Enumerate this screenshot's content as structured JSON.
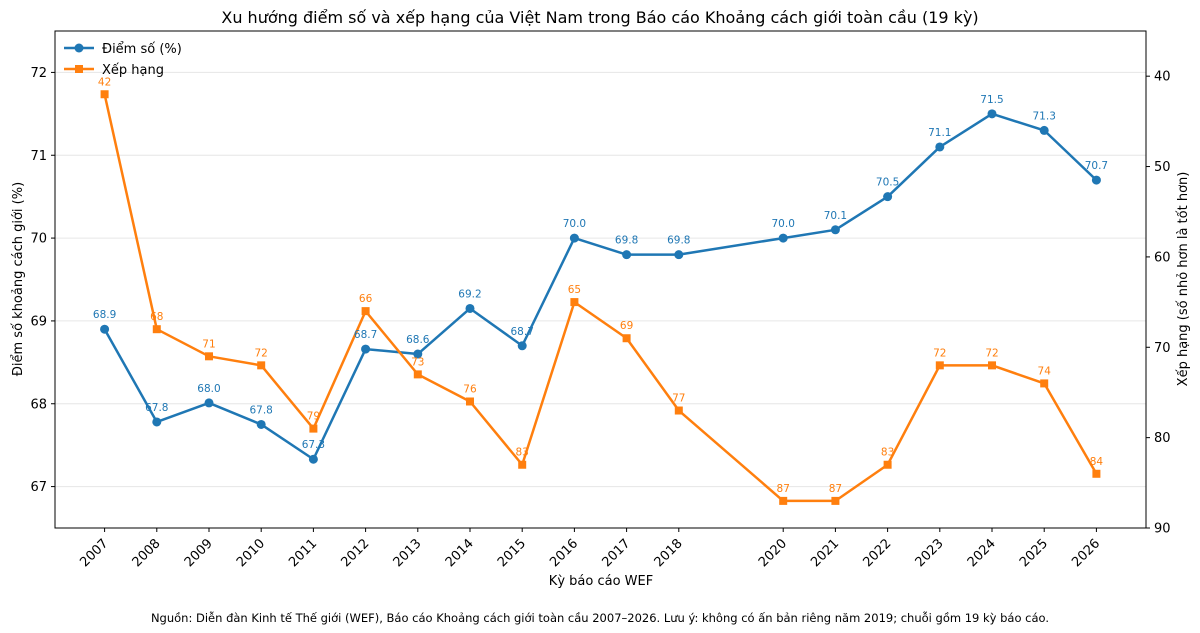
{
  "chart_data": {
    "type": "line",
    "title": "Xu hướng điểm số và xếp hạng của Việt Nam trong Báo cáo Khoảng cách giới toàn cầu (19 kỳ)",
    "xlabel": "Kỳ báo cáo WEF",
    "ylabel_left": "Điểm số khoảng cách giới (%)",
    "ylabel_right": "Xếp hạng (số nhỏ hơn là tốt hơn)",
    "x": [
      2007,
      2008,
      2009,
      2010,
      2011,
      2012,
      2013,
      2014,
      2015,
      2016,
      2017,
      2018,
      2020,
      2021,
      2022,
      2023,
      2024,
      2025,
      2026
    ],
    "x_tick_labels": [
      "2007",
      "2008",
      "2009",
      "2010",
      "2011",
      "2012",
      "2013",
      "2014",
      "2015",
      "2016",
      "2017",
      "2018",
      "2020",
      "2021",
      "2022",
      "2023",
      "2024",
      "2025",
      "2026"
    ],
    "y_left_range": [
      66.5,
      72.5
    ],
    "y_left_ticks": [
      "67",
      "68",
      "69",
      "70",
      "71",
      "72"
    ],
    "y_right_range": [
      90,
      35
    ],
    "y_right_inverted": true,
    "y_right_ticks": [
      "40",
      "50",
      "60",
      "70",
      "80",
      "90"
    ],
    "grid": "horizontal",
    "legend_position": "top-left",
    "series": [
      {
        "name": "Điểm số (%)",
        "axis": "left",
        "marker": "circle",
        "color": "#1f77b4",
        "values": [
          68.9,
          67.78,
          68.01,
          67.75,
          67.33,
          68.66,
          68.6,
          69.15,
          68.7,
          70.0,
          69.8,
          69.8,
          70.0,
          70.1,
          70.5,
          71.1,
          71.5,
          71.3,
          70.7
        ],
        "labels": [
          "68.9",
          "67.8",
          "68.0",
          "67.8",
          "67.3",
          "68.7",
          "68.6",
          "69.2",
          "68.7",
          "70.0",
          "69.8",
          "69.8",
          "70.0",
          "70.1",
          "70.5",
          "71.1",
          "71.5",
          "71.3",
          "70.7"
        ]
      },
      {
        "name": "Xếp hạng",
        "axis": "right",
        "marker": "square",
        "color": "#ff7f0e",
        "values": [
          42,
          68,
          71,
          72,
          79,
          66,
          73,
          76,
          83,
          65,
          69,
          77,
          87,
          87,
          83,
          72,
          72,
          74,
          84
        ],
        "labels": [
          "42",
          "68",
          "71",
          "72",
          "79",
          "66",
          "73",
          "76",
          "83",
          "65",
          "69",
          "77",
          "87",
          "87",
          "83",
          "72",
          "72",
          "74",
          "84"
        ]
      }
    ],
    "footnote": "Nguồn: Diễn đàn Kinh tế Thế giới (WEF), Báo cáo Khoảng cách giới toàn cầu 2007–2026. Lưu ý: không có ấn bản riêng năm 2019; chuỗi gồm 19 kỳ báo cáo."
  }
}
